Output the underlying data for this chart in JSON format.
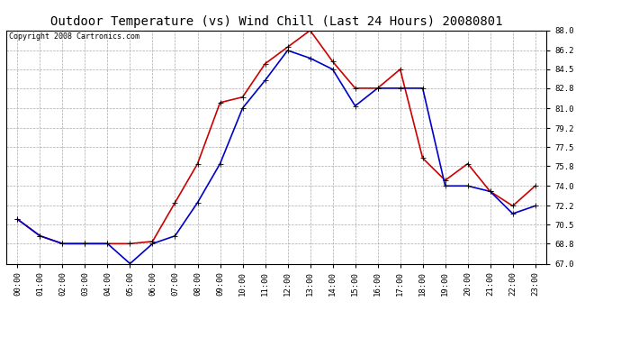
{
  "title": "Outdoor Temperature (vs) Wind Chill (Last 24 Hours) 20080801",
  "copyright": "Copyright 2008 Cartronics.com",
  "x_labels": [
    "00:00",
    "01:00",
    "02:00",
    "03:00",
    "04:00",
    "05:00",
    "06:00",
    "07:00",
    "08:00",
    "09:00",
    "10:00",
    "11:00",
    "12:00",
    "13:00",
    "14:00",
    "15:00",
    "16:00",
    "17:00",
    "18:00",
    "19:00",
    "20:00",
    "21:00",
    "22:00",
    "23:00"
  ],
  "outdoor_temp": [
    71.0,
    69.5,
    68.8,
    68.8,
    68.8,
    68.8,
    69.0,
    72.5,
    76.0,
    81.5,
    82.0,
    85.0,
    86.5,
    88.0,
    85.2,
    82.8,
    82.8,
    84.5,
    76.5,
    74.5,
    76.0,
    73.5,
    72.2,
    74.0
  ],
  "wind_chill": [
    71.0,
    69.5,
    68.8,
    68.8,
    68.8,
    67.0,
    68.8,
    69.5,
    72.5,
    76.0,
    81.0,
    83.5,
    86.2,
    85.5,
    84.5,
    81.2,
    82.8,
    82.8,
    82.8,
    74.0,
    74.0,
    73.5,
    71.5,
    72.2
  ],
  "temp_color": "#cc0000",
  "wind_chill_color": "#0000cc",
  "ylim_min": 67.0,
  "ylim_max": 88.0,
  "yticks": [
    67.0,
    68.8,
    70.5,
    72.2,
    74.0,
    75.8,
    77.5,
    79.2,
    81.0,
    82.8,
    84.5,
    86.2,
    88.0
  ],
  "bg_color": "#ffffff",
  "grid_color": "#aaaaaa",
  "title_fontsize": 10,
  "copyright_fontsize": 6,
  "marker": "+",
  "marker_size": 5,
  "linewidth": 1.2
}
